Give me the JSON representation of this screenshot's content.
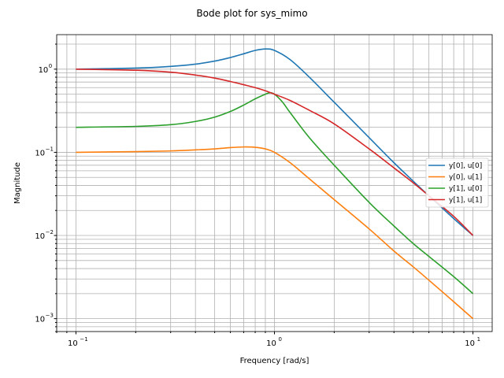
{
  "chart_data": {
    "type": "line",
    "title": "Bode plot for sys_mimo",
    "xlabel": "Frequency [rad/s]",
    "ylabel": "Magnitude",
    "xscale": "log",
    "yscale": "log",
    "xlim": [
      0.08,
      12.5
    ],
    "ylim": [
      0.0007,
      2.6
    ],
    "grid": "on (major and minor)",
    "legend_position": "right",
    "x_ticks": [
      {
        "value": 0.1,
        "base": "10",
        "exp": "−1"
      },
      {
        "value": 1,
        "base": "10",
        "exp": "0"
      },
      {
        "value": 10,
        "base": "10",
        "exp": "1"
      }
    ],
    "y_ticks": [
      {
        "value": 0.001,
        "base": "10",
        "exp": "−3"
      },
      {
        "value": 0.01,
        "base": "10",
        "exp": "−2"
      },
      {
        "value": 0.1,
        "base": "10",
        "exp": "−1"
      },
      {
        "value": 1,
        "base": "10",
        "exp": "0"
      }
    ],
    "series": [
      {
        "name": "y[0], u[0]",
        "color": "#1f77b4",
        "points": [
          [
            0.1,
            1.0
          ],
          [
            0.2,
            1.03
          ],
          [
            0.3,
            1.08
          ],
          [
            0.4,
            1.15
          ],
          [
            0.5,
            1.25
          ],
          [
            0.6,
            1.38
          ],
          [
            0.7,
            1.53
          ],
          [
            0.8,
            1.68
          ],
          [
            0.9,
            1.75
          ],
          [
            1.0,
            1.68
          ],
          [
            1.2,
            1.3
          ],
          [
            1.5,
            0.8
          ],
          [
            2.0,
            0.4
          ],
          [
            3.0,
            0.15
          ],
          [
            4.0,
            0.075
          ],
          [
            5.0,
            0.045
          ],
          [
            6.0,
            0.03
          ],
          [
            8.0,
            0.016
          ],
          [
            10.0,
            0.01
          ]
        ]
      },
      {
        "name": "y[0], u[1]",
        "color": "#ff7f0e",
        "points": [
          [
            0.1,
            0.1
          ],
          [
            0.2,
            0.102
          ],
          [
            0.3,
            0.104
          ],
          [
            0.4,
            0.107
          ],
          [
            0.5,
            0.11
          ],
          [
            0.6,
            0.114
          ],
          [
            0.7,
            0.116
          ],
          [
            0.8,
            0.115
          ],
          [
            0.9,
            0.11
          ],
          [
            1.0,
            0.1
          ],
          [
            1.2,
            0.075
          ],
          [
            1.5,
            0.048
          ],
          [
            2.0,
            0.027
          ],
          [
            3.0,
            0.012
          ],
          [
            4.0,
            0.0065
          ],
          [
            5.0,
            0.0042
          ],
          [
            6.0,
            0.0029
          ],
          [
            8.0,
            0.0016
          ],
          [
            10.0,
            0.001
          ]
        ]
      },
      {
        "name": "y[1], u[0]",
        "color": "#2ca02c",
        "points": [
          [
            0.1,
            0.2
          ],
          [
            0.2,
            0.205
          ],
          [
            0.3,
            0.215
          ],
          [
            0.4,
            0.235
          ],
          [
            0.5,
            0.265
          ],
          [
            0.6,
            0.31
          ],
          [
            0.7,
            0.37
          ],
          [
            0.8,
            0.44
          ],
          [
            0.9,
            0.5
          ],
          [
            0.95,
            0.52
          ],
          [
            1.0,
            0.5
          ],
          [
            1.1,
            0.4
          ],
          [
            1.2,
            0.3
          ],
          [
            1.5,
            0.15
          ],
          [
            2.0,
            0.07
          ],
          [
            3.0,
            0.025
          ],
          [
            4.0,
            0.013
          ],
          [
            5.0,
            0.008
          ],
          [
            6.0,
            0.0056
          ],
          [
            8.0,
            0.0032
          ],
          [
            10.0,
            0.002
          ]
        ]
      },
      {
        "name": "y[1], u[1]",
        "color": "#d62728",
        "points": [
          [
            0.1,
            1.0
          ],
          [
            0.2,
            0.97
          ],
          [
            0.3,
            0.92
          ],
          [
            0.4,
            0.85
          ],
          [
            0.5,
            0.78
          ],
          [
            0.6,
            0.71
          ],
          [
            0.7,
            0.65
          ],
          [
            0.8,
            0.6
          ],
          [
            0.9,
            0.55
          ],
          [
            1.0,
            0.5
          ],
          [
            1.2,
            0.42
          ],
          [
            1.5,
            0.32
          ],
          [
            2.0,
            0.22
          ],
          [
            3.0,
            0.11
          ],
          [
            4.0,
            0.065
          ],
          [
            5.0,
            0.043
          ],
          [
            6.0,
            0.03
          ],
          [
            8.0,
            0.017
          ],
          [
            10.0,
            0.01
          ]
        ]
      }
    ]
  }
}
